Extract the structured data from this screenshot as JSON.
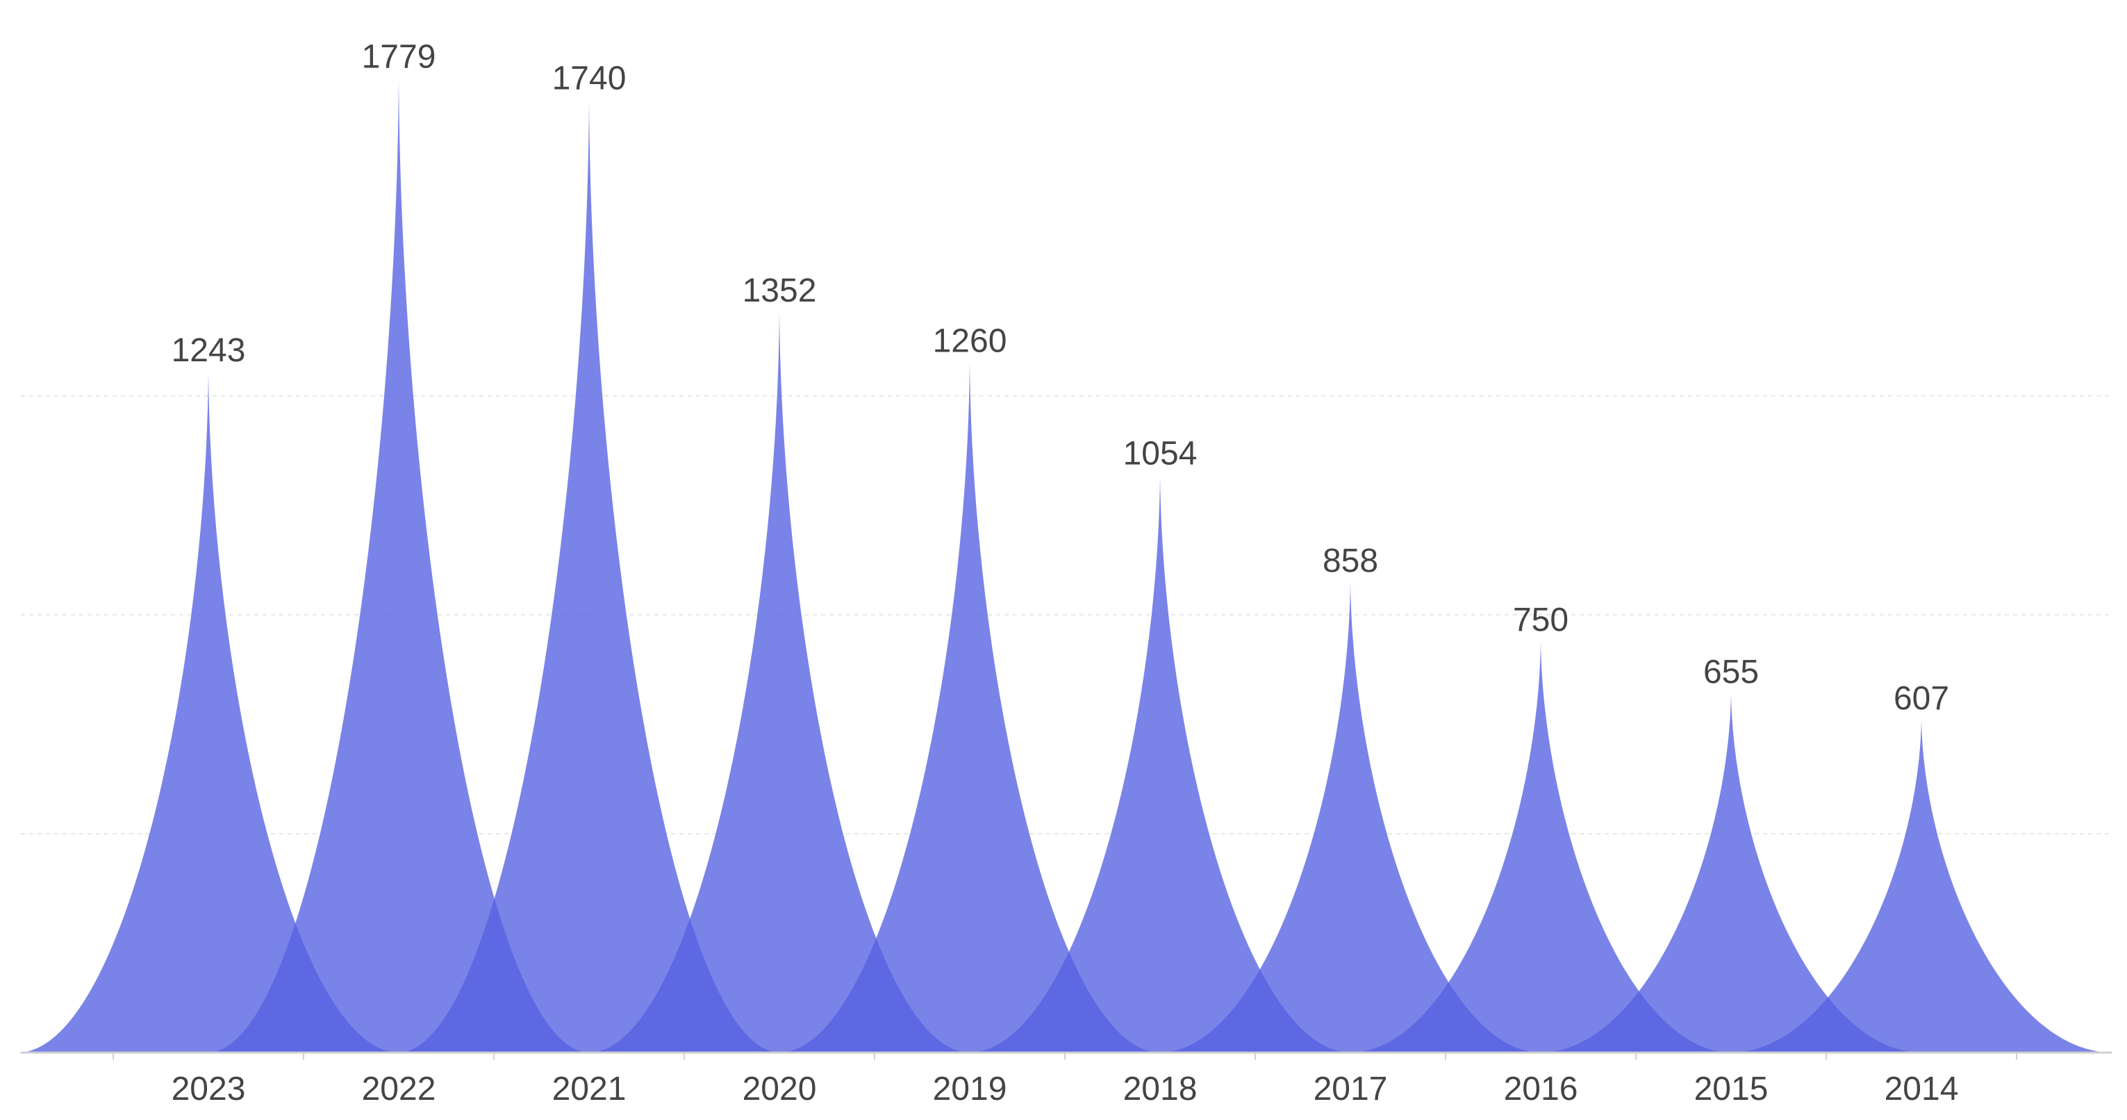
{
  "chart_data": {
    "type": "area",
    "categories": [
      "2023",
      "2022",
      "2021",
      "2020",
      "2019",
      "2018",
      "2017",
      "2016",
      "2015",
      "2014"
    ],
    "values": [
      1243,
      1779,
      1740,
      1352,
      1260,
      1054,
      858,
      750,
      655,
      607
    ],
    "title": "",
    "xlabel": "",
    "ylabel": "",
    "ylim": [
      0,
      1800
    ],
    "grid": "horizontal dashed",
    "legend": "none",
    "color": "#5560e0",
    "show_data_labels": true
  }
}
